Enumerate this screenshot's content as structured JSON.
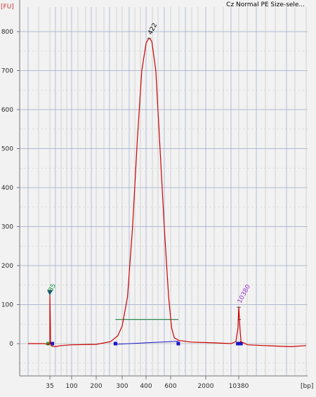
{
  "title": "Cz Normal PE Size-sele...",
  "y_unit": "[FU]",
  "x_unit": "[bp]",
  "colors": {
    "background": "#f2f2f2",
    "trace": "#cc0000",
    "grid_major": "#9aa6c9",
    "grid_minor": "#c3c3c3",
    "grid_dashed": "#c8c8c8",
    "baseline_marker": "#1818c8",
    "region_line": "#2f8a4f",
    "lower_marker_arrow": "#1a5c6e",
    "lower_marker_label": "#1a9a3a",
    "upper_marker_label": "#9933cc",
    "axis": "#777777"
  },
  "chart_data": {
    "type": "line",
    "title": "Cz Normal PE Size-sele...",
    "xlabel": "[bp]",
    "ylabel": "[FU]",
    "ylim": [
      -60,
      840
    ],
    "yticks": [
      0,
      100,
      200,
      300,
      400,
      500,
      600,
      700,
      800
    ],
    "xticks": [
      "35",
      "100",
      "200",
      "300",
      "400",
      "600",
      "2000",
      "10380"
    ],
    "grid": true,
    "x_scale": "non-linear (migration time mapped to bp)",
    "series": [
      {
        "points_bp_fu": [
          [
            20,
            0
          ],
          [
            30,
            0
          ],
          [
            34,
            -2
          ],
          [
            35,
            0
          ],
          [
            35,
            30
          ],
          [
            35,
            120
          ],
          [
            35,
            125
          ],
          [
            36,
            40
          ],
          [
            36,
            0
          ],
          [
            38,
            -6
          ],
          [
            45,
            -8
          ],
          [
            60,
            -5
          ],
          [
            100,
            -3
          ],
          [
            200,
            -2
          ],
          [
            250,
            5
          ],
          [
            280,
            20
          ],
          [
            300,
            45
          ],
          [
            320,
            120
          ],
          [
            340,
            300
          ],
          [
            360,
            520
          ],
          [
            380,
            700
          ],
          [
            400,
            770
          ],
          [
            420,
            784
          ],
          [
            440,
            775
          ],
          [
            470,
            700
          ],
          [
            500,
            520
          ],
          [
            540,
            300
          ],
          [
            580,
            120
          ],
          [
            620,
            40
          ],
          [
            680,
            15
          ],
          [
            800,
            8
          ],
          [
            1200,
            4
          ],
          [
            3000,
            2
          ],
          [
            7000,
            0
          ],
          [
            9000,
            5
          ],
          [
            10000,
            40
          ],
          [
            10380,
            95
          ],
          [
            10700,
            40
          ],
          [
            11000,
            5
          ],
          [
            13000,
            -3
          ],
          [
            20000,
            -5
          ],
          [
            40000,
            -8
          ],
          [
            60000,
            -5
          ]
        ]
      }
    ],
    "annotations": [
      {
        "text": "422",
        "x_bp": 422,
        "y_fu": 784
      },
      {
        "text": "35",
        "x_bp": 35,
        "y_fu": 125
      },
      {
        "text": "10380",
        "x_bp": 10380,
        "y_fu": 95
      }
    ],
    "regions": [
      {
        "from_bp": 270,
        "to_bp": 780,
        "marker_y_fu": 62
      },
      {
        "from_bp": 9900,
        "to_bp": 11000,
        "marker_y_fu": 62
      }
    ]
  }
}
